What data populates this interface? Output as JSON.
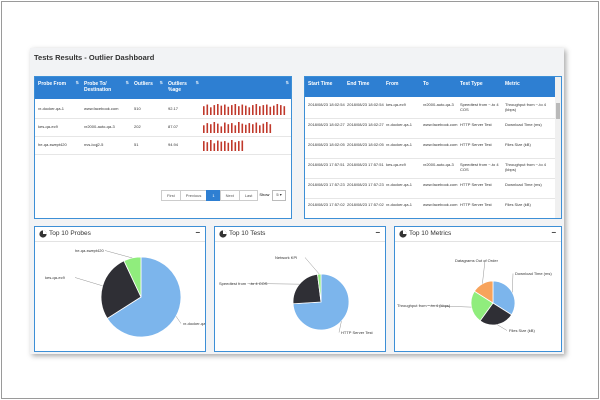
{
  "dashboard": {
    "title": "Tests Results - Outlier Dashboard"
  },
  "outlier_table": {
    "headers": [
      "Probe From",
      "Probe To/ Destination",
      "Outliers",
      "Outliers %age"
    ],
    "rows": [
      {
        "from": "vr-docker-qa-1",
        "to": "www.facebook.com",
        "outliers": "510",
        "pct": "92.17",
        "spark": [
          0.8,
          0.95,
          0.7,
          0.9,
          1,
          0.85,
          0.95,
          0.75,
          0.9,
          1,
          0.8,
          0.95,
          0.85,
          0.7,
          0.9,
          1,
          0.8,
          0.9,
          0.95,
          0.75,
          0.85,
          1,
          0.9,
          0.8
        ]
      },
      {
        "from": "kes-qa-ec9",
        "to": "vr2000-auto-qa-3",
        "outliers": "202",
        "pct": "87.07",
        "spark": [
          0.7,
          0.9,
          0.8,
          1,
          0.85,
          0.6,
          0.95,
          0.8,
          0.9,
          0.7,
          1,
          0.85,
          0.75,
          0.9,
          0.8,
          0.95,
          0.7,
          0.85,
          1,
          0.8
        ]
      },
      {
        "from": "he-qa-swept420",
        "to": "nvs-lcqj2-5",
        "outliers": "51",
        "pct": "94.94",
        "spark": [
          0.9,
          0.8,
          1,
          0.7,
          0.95,
          0.85,
          0.9,
          0.75,
          1,
          0.8,
          0.9,
          0.95
        ]
      }
    ],
    "pagination": {
      "first": "First",
      "previous": "Previous",
      "page": "1",
      "next": "Next",
      "last": "Last",
      "show_label": "Show",
      "show_value": "5"
    }
  },
  "tests_table": {
    "headers": [
      "Start Time",
      "End Time",
      "From",
      "To",
      "Test Type",
      "Metric"
    ],
    "rows": [
      {
        "start": "2018/08/23 18:02:54",
        "end": "2018/08/23 18:02:54",
        "from": "kes-qa-ec9",
        "to": "vr2000-auto-qa-3",
        "type": "Speedtest from ~-to 4 COS",
        "metric": "Throughput from ~-to 4 (kbps)"
      },
      {
        "start": "2018/08/23 18:02:27",
        "end": "2018/08/23 18:02:27",
        "from": "vr-docker-qa-1",
        "to": "www.facebook.com",
        "type": "HTTP Server Test",
        "metric": "Download Time (ms)"
      },
      {
        "start": "2018/08/23 18:02:05",
        "end": "2018/08/23 18:02:05",
        "from": "vr-docker-qa-1",
        "to": "www.facebook.com",
        "type": "HTTP Server Test",
        "metric": "Files Size (kB)"
      },
      {
        "start": "2018/08/23 17:57:51",
        "end": "2018/08/23 17:57:51",
        "from": "kes-qa-ec9",
        "to": "vr2000-auto-qa-3",
        "type": "Speedtest from ~-to 4 COS",
        "metric": "Throughput from ~-to 4 (kbps)"
      },
      {
        "start": "2018/08/23 17:57:23",
        "end": "2018/08/23 17:57:23",
        "from": "vr-docker-qa-1",
        "to": "www.facebook.com",
        "type": "HTTP Server Test",
        "metric": "Download Time (ms)"
      },
      {
        "start": "2018/08/23 17:57:02",
        "end": "2018/08/23 17:57:02",
        "from": "vr-docker-qa-1",
        "to": "www.facebook.com",
        "type": "HTTP Server Test",
        "metric": "Files Size (kB)"
      }
    ]
  },
  "cards": {
    "probes": {
      "title": "Top 10 Probes",
      "minimize": "−"
    },
    "tests": {
      "title": "Top 10 Tests",
      "minimize": "−"
    },
    "metrics": {
      "title": "Top 10 Metrics",
      "minimize": "−"
    }
  },
  "chart_data": [
    {
      "type": "pie",
      "title": "Top 10 Probes",
      "labels": [
        "vr-docker-qa-1",
        "kes-qa-ec9",
        "he-qa-swept420"
      ],
      "values": [
        66,
        27,
        7
      ],
      "colors": [
        "#7cb5ec",
        "#2f2f35",
        "#90ed7d"
      ]
    },
    {
      "type": "pie",
      "title": "Top 10 Tests",
      "labels": [
        "HTTP Server Test",
        "Speedtest from ~-to 4 COS",
        "Network KPI"
      ],
      "values": [
        74,
        24,
        2
      ],
      "colors": [
        "#7cb5ec",
        "#2f2f35",
        "#90ed7d"
      ]
    },
    {
      "type": "pie",
      "title": "Top 10 Metrics",
      "labels": [
        "Download Time (ms)",
        "Files Size (kB)",
        "Throughput from ~-to 4 (kbps)",
        "Datagrams Out of Order"
      ],
      "values": [
        34,
        26,
        24,
        16
      ],
      "colors": [
        "#7cb5ec",
        "#2f2f35",
        "#90ed7d",
        "#f7a35c"
      ]
    }
  ],
  "colors": {
    "header": "#2e7fd2",
    "spark": "#c0392b"
  }
}
